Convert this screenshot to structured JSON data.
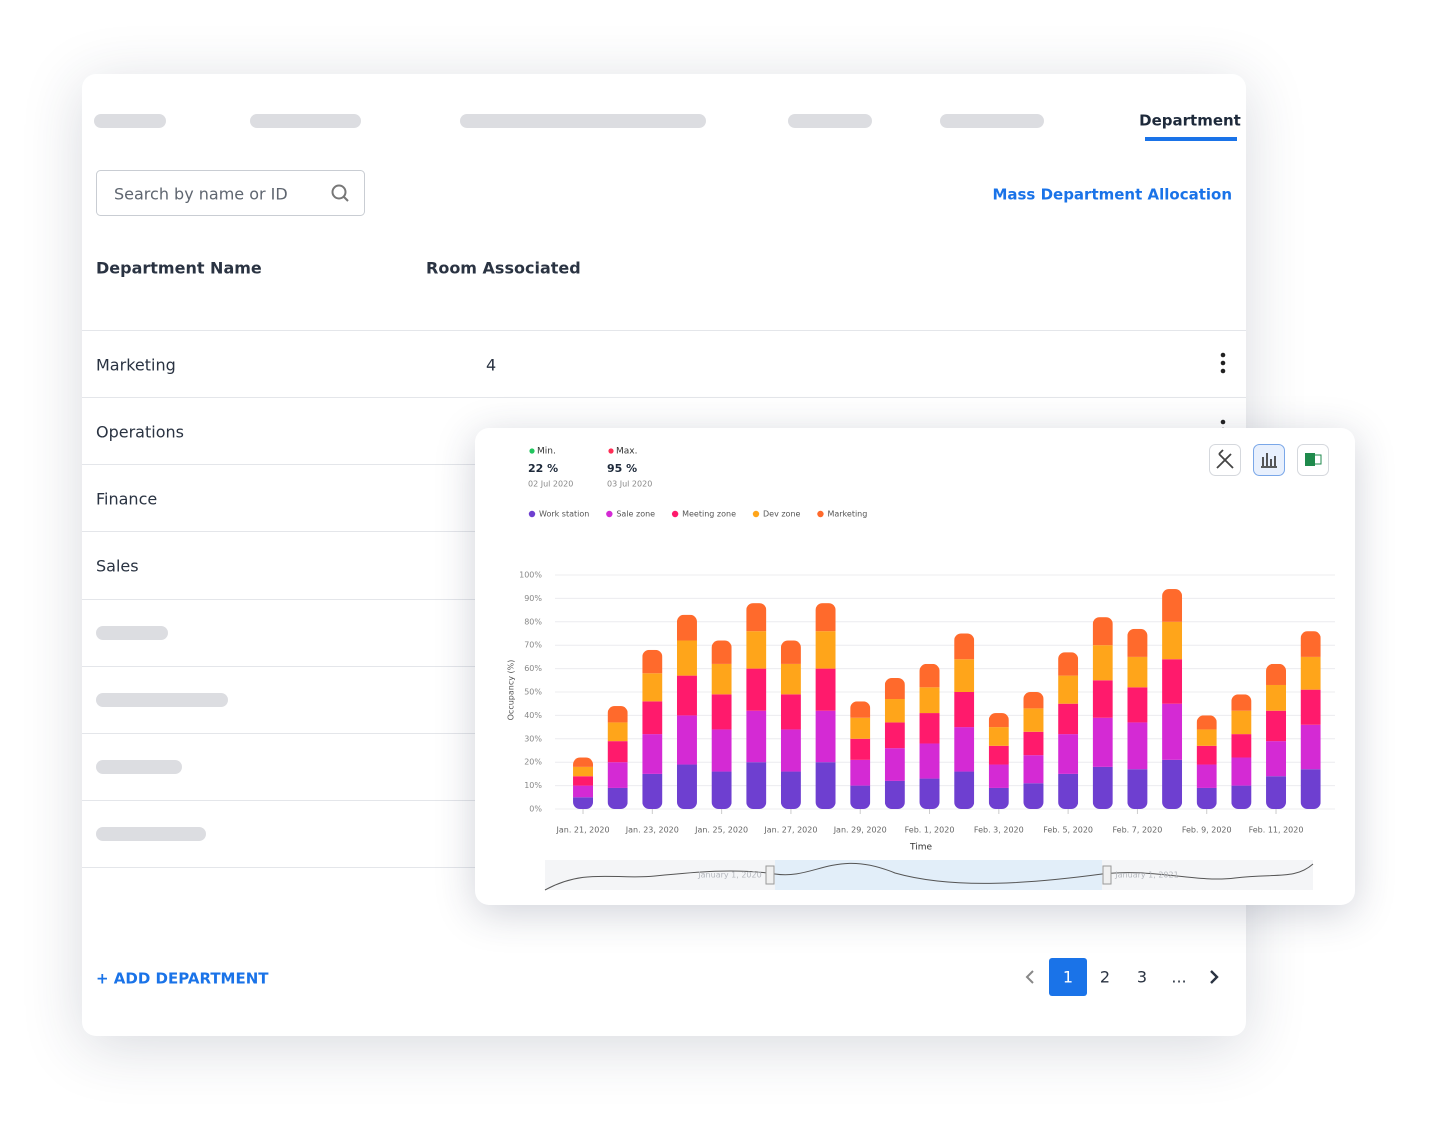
{
  "page": {
    "active_tab": "Department",
    "search_placeholder": "Search by name or ID",
    "mass_allocation": "Mass Department Allocation",
    "table": {
      "headers": [
        "Department Name",
        "Room Associated"
      ],
      "rows": [
        {
          "name": "Marketing",
          "rooms": 4
        },
        {
          "name": "Operations"
        },
        {
          "name": "Finance"
        },
        {
          "name": "Sales"
        }
      ]
    },
    "add_button": "+ ADD DEPARTMENT",
    "pagination": [
      "1",
      "2",
      "3",
      "..."
    ]
  },
  "chart_data": {
    "type": "bar",
    "stacked": true,
    "stats": [
      {
        "label": "Min.",
        "value": "22 %",
        "date": "02 Jul 2020",
        "color": "#22c55e"
      },
      {
        "label": "Max.",
        "value": "95 %",
        "date": "03 Jul 2020",
        "color": "#ff2d55"
      }
    ],
    "x_label": "Time",
    "y_label": "Occupancy (%)",
    "categories": [
      "Jan. 21, 2020",
      null,
      "Jan. 23, 2020",
      null,
      "Jan. 25, 2020",
      null,
      "Jan. 27, 2020",
      null,
      "Jan. 29, 2020",
      null,
      "Feb. 1, 2020",
      null,
      "Feb. 3, 2020",
      null,
      "Feb. 5, 2020",
      null,
      "Feb. 7, 2020",
      null,
      "Feb. 9, 2020",
      null,
      "Feb. 11, 2020",
      null
    ],
    "series": [
      {
        "name": "Work station",
        "color": "#6e3fd0",
        "values": [
          5,
          9,
          15,
          19,
          16,
          20,
          16,
          20,
          10,
          12,
          13,
          16,
          9,
          11,
          15,
          18,
          17,
          21,
          9,
          10,
          14,
          17
        ]
      },
      {
        "name": "Sale zone",
        "color": "#d42ad4",
        "values": [
          5,
          11,
          17,
          21,
          18,
          22,
          18,
          22,
          11,
          14,
          15,
          19,
          10,
          12,
          17,
          21,
          20,
          24,
          10,
          12,
          15,
          19
        ]
      },
      {
        "name": "Meeting zone",
        "color": "#ff1a6c",
        "values": [
          4,
          9,
          14,
          17,
          15,
          18,
          15,
          18,
          9,
          11,
          13,
          15,
          8,
          10,
          13,
          16,
          15,
          19,
          8,
          10,
          13,
          15
        ]
      },
      {
        "name": "Dev zone",
        "color": "#ffa51a",
        "values": [
          4,
          8,
          12,
          15,
          13,
          16,
          13,
          16,
          9,
          10,
          11,
          14,
          8,
          10,
          12,
          15,
          13,
          16,
          7,
          10,
          11,
          14
        ]
      },
      {
        "name": "Marketing",
        "color": "#ff6a2c",
        "values": [
          4,
          7,
          10,
          11,
          10,
          12,
          10,
          12,
          7,
          9,
          10,
          11,
          6,
          7,
          10,
          12,
          12,
          14,
          6,
          7,
          9,
          11
        ]
      }
    ],
    "ylim": [
      0,
      100
    ],
    "yticks": [
      {
        "value": 0,
        "label": "0%"
      },
      {
        "value": 10,
        "label": "10%"
      },
      {
        "value": 20,
        "label": "20%"
      },
      {
        "value": 30,
        "label": "30%"
      },
      {
        "value": 40,
        "label": "40%"
      },
      {
        "value": 50,
        "label": "50%"
      },
      {
        "value": 60,
        "label": "60%"
      },
      {
        "value": 70,
        "label": "70%"
      },
      {
        "value": 80,
        "label": "80%"
      },
      {
        "value": 90,
        "label": "90%"
      },
      {
        "value": 100,
        "label": "100%"
      }
    ],
    "grid": true,
    "navigator": {
      "start_label": "January 1, 2020",
      "end_label": "January 1, 2021"
    }
  }
}
